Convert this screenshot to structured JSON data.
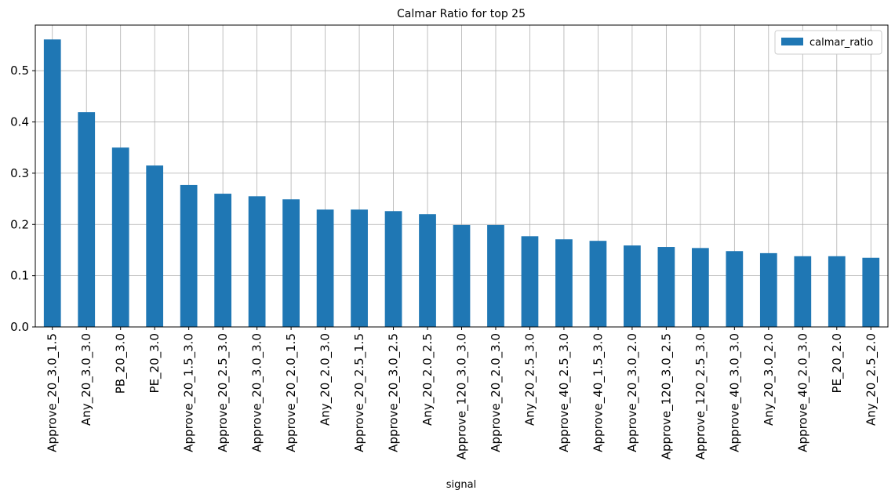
{
  "chart_data": {
    "type": "bar",
    "title": "Calmar Ratio for top 25",
    "x_label": "signal",
    "categories": [
      "Approve_20_3.0_1.5",
      "Any_20_3.0_3.0",
      "PB_20_3.0",
      "PE_20_3.0",
      "Approve_20_1.5_3.0",
      "Approve_20_2.5_3.0",
      "Approve_20_3.0_3.0",
      "Approve_20_2.0_1.5",
      "Any_20_2.0_3.0",
      "Approve_20_2.5_1.5",
      "Approve_20_3.0_2.5",
      "Any_20_2.0_2.5",
      "Approve_120_3.0_3.0",
      "Approve_20_2.0_3.0",
      "Any_20_2.5_3.0",
      "Approve_40_2.5_3.0",
      "Approve_40_1.5_3.0",
      "Approve_20_3.0_2.0",
      "Approve_120_3.0_2.5",
      "Approve_120_2.5_3.0",
      "Approve_40_3.0_3.0",
      "Any_20_3.0_2.0",
      "Approve_40_2.0_3.0",
      "PE_20_2.0",
      "Any_20_2.5_2.0"
    ],
    "series": [
      {
        "name": "calmar_ratio",
        "color": "#1f77b4",
        "values": [
          0.561,
          0.419,
          0.35,
          0.315,
          0.277,
          0.26,
          0.255,
          0.249,
          0.229,
          0.229,
          0.226,
          0.22,
          0.199,
          0.199,
          0.177,
          0.171,
          0.168,
          0.159,
          0.156,
          0.154,
          0.148,
          0.144,
          0.138,
          0.138,
          0.135
        ]
      }
    ],
    "ylim": [
      0,
      0.589
    ],
    "yticks": [
      {
        "value": 0,
        "label": "0.0"
      },
      0.1,
      0.2,
      0.3,
      0.4,
      0.5
    ],
    "grid": true,
    "legend": "upper right"
  }
}
